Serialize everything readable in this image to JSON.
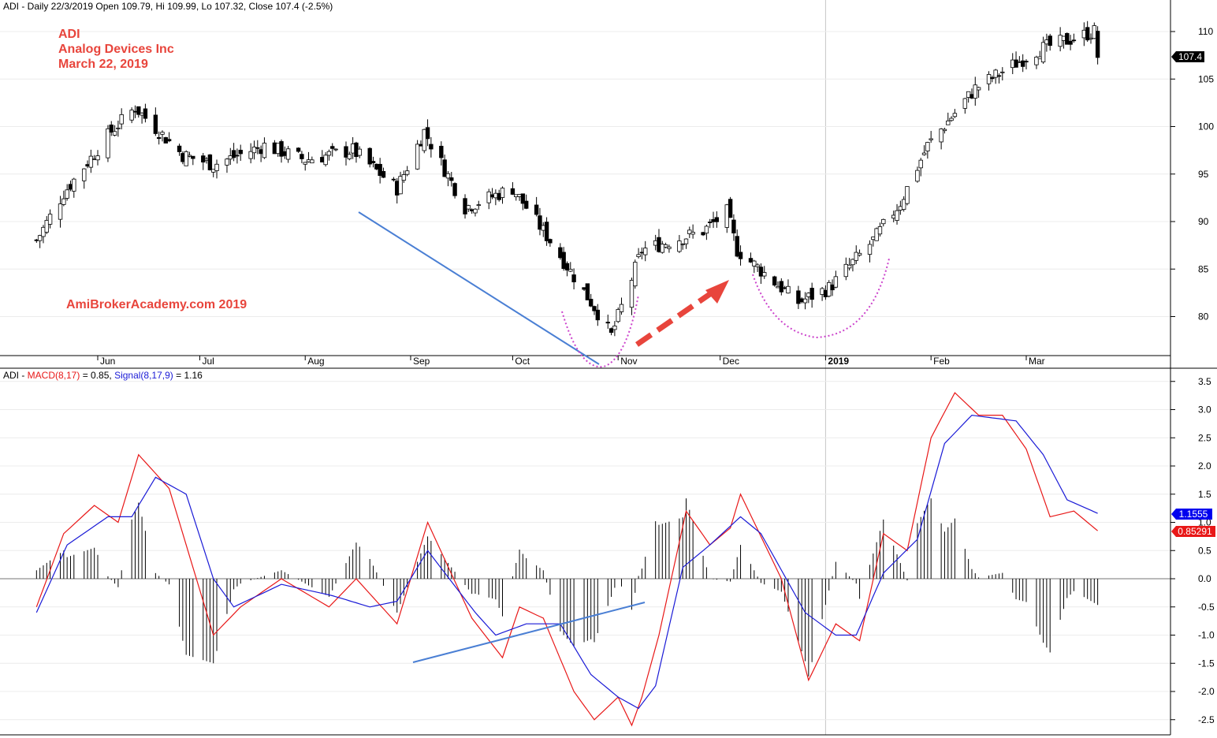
{
  "header": {
    "price_info": "ADI - Daily 22/3/2019 Open 109.79, Hi 109.99, Lo 107.32, Close 107.4 (-2.5%)",
    "macd_prefix": "ADI - ",
    "macd_label": "MACD(8,17)",
    "macd_value": " = 0.85, ",
    "signal_label": "Signal(8,17,9)",
    "signal_value": " = 1.16"
  },
  "annotations": {
    "ticker": "ADI",
    "company": "Analog Devices Inc",
    "date": "March 22, 2019",
    "watermark": "AmiBrokerAcademy.com  2019"
  },
  "colors": {
    "annotation": "#e8453c",
    "macd": "#e81818",
    "signal": "#1a1ad6",
    "trendline": "#4a7fd4",
    "dotted_arc": "#cc44cc"
  },
  "chart_data": [
    {
      "type": "candlestick",
      "title": "ADI - Daily",
      "x_labels": [
        "Jun",
        "Jul",
        "Aug",
        "Sep",
        "Oct",
        "Nov",
        "Dec",
        "2019",
        "Feb",
        "Mar"
      ],
      "y_ticks": [
        80,
        85,
        90,
        95,
        100,
        105,
        110
      ],
      "ylim": [
        76,
        113
      ],
      "last_price_badge": "107.4",
      "approx_close_path": [
        {
          "date": "2018-05-14",
          "close": 88
        },
        {
          "date": "2018-05-22",
          "close": 93
        },
        {
          "date": "2018-06-05",
          "close": 99.5
        },
        {
          "date": "2018-06-12",
          "close": 102
        },
        {
          "date": "2018-06-26",
          "close": 97
        },
        {
          "date": "2018-07-05",
          "close": 96
        },
        {
          "date": "2018-07-20",
          "close": 98
        },
        {
          "date": "2018-08-01",
          "close": 96.5
        },
        {
          "date": "2018-08-15",
          "close": 97.5
        },
        {
          "date": "2018-08-28",
          "close": 93.5
        },
        {
          "date": "2018-09-05",
          "close": 99.5
        },
        {
          "date": "2018-09-17",
          "close": 91.5
        },
        {
          "date": "2018-10-01",
          "close": 93.5
        },
        {
          "date": "2018-10-12",
          "close": 88
        },
        {
          "date": "2018-10-25",
          "close": 81
        },
        {
          "date": "2018-10-30",
          "close": 78
        },
        {
          "date": "2018-11-08",
          "close": 87
        },
        {
          "date": "2018-11-26",
          "close": 89
        },
        {
          "date": "2018-12-03",
          "close": 91
        },
        {
          "date": "2018-12-06",
          "close": 87
        },
        {
          "date": "2018-12-24",
          "close": 81.5
        },
        {
          "date": "2019-01-02",
          "close": 83
        },
        {
          "date": "2019-01-15",
          "close": 88
        },
        {
          "date": "2019-01-23",
          "close": 92
        },
        {
          "date": "2019-01-31",
          "close": 98
        },
        {
          "date": "2019-02-14",
          "close": 104
        },
        {
          "date": "2019-03-04",
          "close": 108
        },
        {
          "date": "2019-03-21",
          "close": 110
        },
        {
          "date": "2019-03-22",
          "close": 107.4
        }
      ]
    },
    {
      "type": "line",
      "title": "MACD(8,17)",
      "y_ticks": [
        -2.5,
        -2.0,
        -1.5,
        -1.0,
        -0.5,
        0.0,
        0.5,
        1.0,
        1.5,
        2.0,
        2.5,
        3.0,
        3.5
      ],
      "ylim": [
        -2.7,
        3.6
      ],
      "macd_badge": "0.85291",
      "signal_badge": "1.1555",
      "series": [
        {
          "name": "MACD(8,17)",
          "points": [
            {
              "date": "2018-05-14",
              "value": -0.5
            },
            {
              "date": "2018-05-22",
              "value": 0.8
            },
            {
              "date": "2018-05-31",
              "value": 1.3
            },
            {
              "date": "2018-06-07",
              "value": 1.0
            },
            {
              "date": "2018-06-13",
              "value": 2.2
            },
            {
              "date": "2018-06-22",
              "value": 1.6
            },
            {
              "date": "2018-07-05",
              "value": -1.0
            },
            {
              "date": "2018-07-13",
              "value": -0.5
            },
            {
              "date": "2018-07-25",
              "value": 0.0
            },
            {
              "date": "2018-08-08",
              "value": -0.5
            },
            {
              "date": "2018-08-16",
              "value": 0.0
            },
            {
              "date": "2018-08-28",
              "value": -0.8
            },
            {
              "date": "2018-09-06",
              "value": 1.0
            },
            {
              "date": "2018-09-19",
              "value": -0.7
            },
            {
              "date": "2018-09-28",
              "value": -1.4
            },
            {
              "date": "2018-10-03",
              "value": -0.5
            },
            {
              "date": "2018-10-10",
              "value": -0.7
            },
            {
              "date": "2018-10-19",
              "value": -2.0
            },
            {
              "date": "2018-10-25",
              "value": -2.5
            },
            {
              "date": "2018-11-01",
              "value": -2.1
            },
            {
              "date": "2018-11-05",
              "value": -2.6
            },
            {
              "date": "2018-11-08",
              "value": -2.1
            },
            {
              "date": "2018-11-13",
              "value": -1.0
            },
            {
              "date": "2018-11-21",
              "value": 1.2
            },
            {
              "date": "2018-11-28",
              "value": 0.6
            },
            {
              "date": "2018-12-04",
              "value": 0.9
            },
            {
              "date": "2018-12-07",
              "value": 1.5
            },
            {
              "date": "2018-12-19",
              "value": 0.0
            },
            {
              "date": "2018-12-27",
              "value": -1.8
            },
            {
              "date": "2019-01-04",
              "value": -0.8
            },
            {
              "date": "2019-01-11",
              "value": -1.1
            },
            {
              "date": "2019-01-18",
              "value": 0.8
            },
            {
              "date": "2019-01-25",
              "value": 0.5
            },
            {
              "date": "2019-02-01",
              "value": 2.5
            },
            {
              "date": "2019-02-08",
              "value": 3.3
            },
            {
              "date": "2019-02-15",
              "value": 2.9
            },
            {
              "date": "2019-02-22",
              "value": 2.9
            },
            {
              "date": "2019-03-01",
              "value": 2.3
            },
            {
              "date": "2019-03-08",
              "value": 1.1
            },
            {
              "date": "2019-03-15",
              "value": 1.2
            },
            {
              "date": "2019-03-22",
              "value": 0.85
            }
          ]
        },
        {
          "name": "Signal(8,17,9)",
          "points": [
            {
              "date": "2018-05-14",
              "value": -0.6
            },
            {
              "date": "2018-05-23",
              "value": 0.6
            },
            {
              "date": "2018-06-04",
              "value": 1.1
            },
            {
              "date": "2018-06-11",
              "value": 1.1
            },
            {
              "date": "2018-06-18",
              "value": 1.8
            },
            {
              "date": "2018-06-27",
              "value": 1.5
            },
            {
              "date": "2018-07-05",
              "value": 0.0
            },
            {
              "date": "2018-07-11",
              "value": -0.5
            },
            {
              "date": "2018-07-25",
              "value": -0.1
            },
            {
              "date": "2018-08-09",
              "value": -0.3
            },
            {
              "date": "2018-08-20",
              "value": -0.5
            },
            {
              "date": "2018-08-28",
              "value": -0.4
            },
            {
              "date": "2018-09-06",
              "value": 0.5
            },
            {
              "date": "2018-09-20",
              "value": -0.6
            },
            {
              "date": "2018-09-26",
              "value": -1.0
            },
            {
              "date": "2018-10-05",
              "value": -0.8
            },
            {
              "date": "2018-10-15",
              "value": -0.8
            },
            {
              "date": "2018-10-24",
              "value": -1.7
            },
            {
              "date": "2018-11-01",
              "value": -2.1
            },
            {
              "date": "2018-11-07",
              "value": -2.3
            },
            {
              "date": "2018-11-12",
              "value": -1.9
            },
            {
              "date": "2018-11-20",
              "value": 0.2
            },
            {
              "date": "2018-11-28",
              "value": 0.6
            },
            {
              "date": "2018-12-07",
              "value": 1.1
            },
            {
              "date": "2018-12-13",
              "value": 0.8
            },
            {
              "date": "2018-12-26",
              "value": -0.6
            },
            {
              "date": "2019-01-04",
              "value": -1.0
            },
            {
              "date": "2019-01-10",
              "value": -1.0
            },
            {
              "date": "2019-01-18",
              "value": 0.1
            },
            {
              "date": "2019-01-28",
              "value": 0.7
            },
            {
              "date": "2019-02-05",
              "value": 2.4
            },
            {
              "date": "2019-02-13",
              "value": 2.9
            },
            {
              "date": "2019-02-26",
              "value": 2.8
            },
            {
              "date": "2019-03-06",
              "value": 2.2
            },
            {
              "date": "2019-03-13",
              "value": 1.4
            },
            {
              "date": "2019-03-22",
              "value": 1.16
            }
          ]
        }
      ]
    }
  ]
}
